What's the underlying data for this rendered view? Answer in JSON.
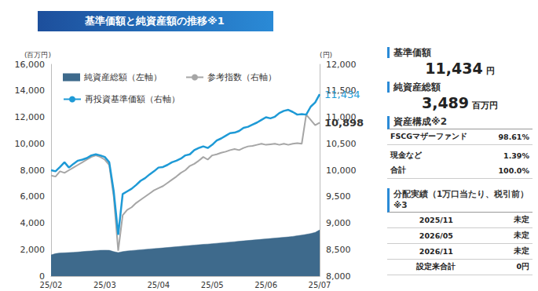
{
  "header": {
    "title": "基準価額と純資産額の推移※1"
  },
  "chart_data": {
    "type": "line",
    "categories": [
      "25/02",
      null,
      null,
      null,
      null,
      null,
      null,
      null,
      null,
      null,
      null,
      null,
      "25/03",
      null,
      null,
      null,
      null,
      null,
      null,
      null,
      null,
      null,
      null,
      null,
      "25/04",
      null,
      null,
      null,
      null,
      null,
      null,
      null,
      null,
      null,
      null,
      null,
      "25/05",
      null,
      null,
      null,
      null,
      null,
      null,
      null,
      null,
      null,
      null,
      null,
      "25/06",
      null,
      null,
      null,
      null,
      null,
      null,
      null,
      null,
      null,
      null,
      null,
      "25/07"
    ],
    "series": [
      {
        "name": "純資産総額（左軸）",
        "type": "area",
        "axis": "y",
        "color": "#3e6a8c",
        "values": [
          1600,
          1700,
          1750,
          1760,
          1780,
          1800,
          1820,
          1850,
          1880,
          1900,
          1930,
          1950,
          1960,
          1950,
          1850,
          1780,
          1850,
          1900,
          1930,
          1960,
          1990,
          2020,
          2050,
          2080,
          2100,
          2130,
          2160,
          2190,
          2220,
          2250,
          2280,
          2310,
          2340,
          2370,
          2400,
          2420,
          2450,
          2480,
          2510,
          2540,
          2570,
          2600,
          2630,
          2660,
          2690,
          2720,
          2750,
          2780,
          2810,
          2840,
          2870,
          2900,
          2930,
          2960,
          3000,
          3050,
          3100,
          3150,
          3220,
          3300,
          3489
        ]
      },
      {
        "name": "参考指数（右軸）",
        "type": "line",
        "axis": "y2",
        "color": "#a6a6a6",
        "values": [
          9900,
          9880,
          9980,
          9950,
          10000,
          10050,
          10100,
          10150,
          10200,
          10250,
          10280,
          10250,
          10200,
          10100,
          9500,
          8480,
          9150,
          9250,
          9300,
          9380,
          9440,
          9500,
          9560,
          9620,
          9660,
          9700,
          9760,
          9820,
          9880,
          9950,
          10000,
          10080,
          10120,
          10180,
          10250,
          10200,
          10280,
          10300,
          10330,
          10350,
          10380,
          10400,
          10380,
          10420,
          10450,
          10460,
          10480,
          10500,
          10480,
          10490,
          10500,
          10480,
          10500,
          10480,
          10500,
          10510,
          10500,
          11050,
          10950,
          10850,
          10898
        ]
      },
      {
        "name": "再投資基準価額（右軸）",
        "type": "line",
        "axis": "y2",
        "color": "#1e9ad6",
        "values": [
          10000,
          9980,
          10060,
          10150,
          10050,
          10120,
          10180,
          10200,
          10230,
          10280,
          10300,
          10280,
          10250,
          10150,
          9600,
          8780,
          9550,
          9600,
          9650,
          9720,
          9800,
          9850,
          9920,
          9980,
          10050,
          10060,
          10100,
          10150,
          10180,
          10220,
          10280,
          10300,
          10380,
          10420,
          10450,
          10420,
          10480,
          10560,
          10600,
          10650,
          10700,
          10710,
          10740,
          10800,
          10820,
          10860,
          10900,
          10950,
          11000,
          10980,
          11010,
          11080,
          11120,
          11140,
          11100,
          11050,
          11060,
          11050,
          11200,
          11280,
          11434
        ]
      }
    ],
    "ylabel": "(百万円)",
    "y2label": "(円)",
    "ylim": [
      0,
      16000
    ],
    "yticks": [
      0,
      {
        "value": 2000,
        "label": "2,000"
      },
      {
        "value": 4000,
        "label": "4,000"
      },
      {
        "value": 6000,
        "label": "6,000"
      },
      {
        "value": 8000,
        "label": "8,000"
      },
      {
        "value": 10000,
        "label": "10,000"
      },
      {
        "value": 12000,
        "label": "12,000"
      },
      {
        "value": 14000,
        "label": "14,000"
      },
      {
        "value": 16000,
        "label": "16,000"
      }
    ],
    "y2lim": [
      8000,
      12000
    ],
    "y2ticks": [
      {
        "value": 8000,
        "label": "8,000"
      },
      {
        "value": 8500,
        "label": "8,500"
      },
      {
        "value": 9000,
        "label": "9,000"
      },
      {
        "value": 9500,
        "label": "9,500"
      },
      {
        "value": 10000,
        "label": "10,000"
      },
      {
        "value": 10500,
        "label": "10,500"
      },
      {
        "value": 11000,
        "label": "11,000"
      },
      {
        "value": 11500,
        "label": "11,500"
      },
      {
        "value": 12000,
        "label": "12,000"
      }
    ],
    "annotations": [
      {
        "series": "再投資基準価額（右軸）",
        "text": "11,434"
      },
      {
        "series": "参考指数（右軸）",
        "text": "10,898"
      }
    ],
    "legend": "upper left",
    "grid": false
  },
  "panel": {
    "price": {
      "title": "基準価額",
      "value": "11,434",
      "unit": "円"
    },
    "assets": {
      "title": "純資産総額",
      "value": "3,489",
      "unit": "百万円"
    },
    "composition": {
      "title": "資産構成※2",
      "rows": [
        [
          "FSCGマザーファンド",
          "98.61%"
        ],
        [
          "現金など",
          "1.39%"
        ],
        [
          "合計",
          "100.0%"
        ]
      ]
    },
    "distribution": {
      "title": "分配実績（1万口当たり、税引前）※3",
      "rows": [
        [
          "2025/11",
          "未定"
        ],
        [
          "2026/05",
          "未定"
        ],
        [
          "2026/11",
          "未定"
        ],
        [
          "設定来合計",
          "0円"
        ]
      ]
    }
  }
}
